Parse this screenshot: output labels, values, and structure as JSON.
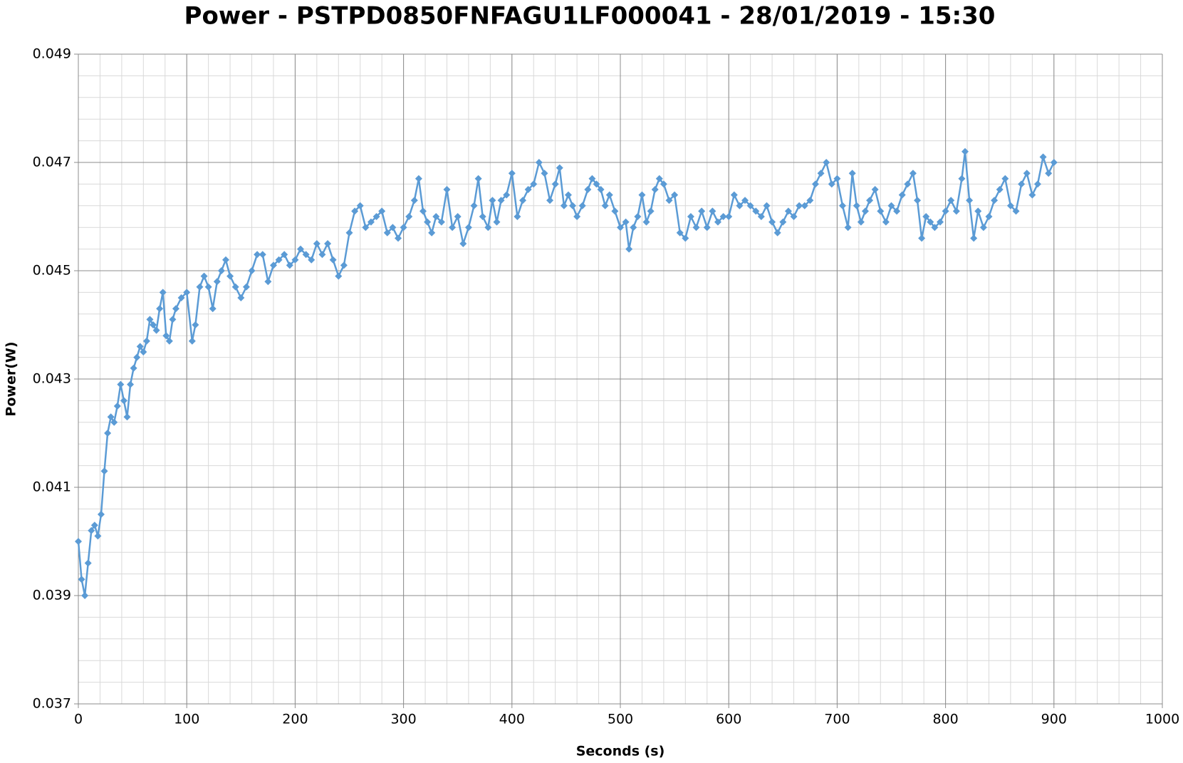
{
  "chart_data": {
    "type": "line",
    "title": "Power - PSTPD0850FNFAGU1LF000041 - 28/01/2019 - 15:30",
    "x_label": "Seconds (s)",
    "y_label": "Power(W)",
    "color": "#5b9bd5",
    "marker": "diamond",
    "grid": true,
    "minor_grid": {
      "x": 20,
      "y": 0.0004
    },
    "xlim": [
      0,
      1000
    ],
    "xticks": [
      0,
      100,
      200,
      300,
      400,
      500,
      600,
      700,
      800,
      900,
      1000
    ],
    "ylim": [
      0.037,
      0.049
    ],
    "yticks": [
      0.037,
      0.039,
      0.041,
      0.043,
      0.045,
      0.047,
      0.049
    ],
    "x": [
      0,
      3,
      6,
      9,
      12,
      15,
      18,
      21,
      24,
      27,
      30,
      33,
      36,
      39,
      42,
      45,
      48,
      51,
      54,
      57,
      60,
      63,
      66,
      69,
      72,
      75,
      78,
      81,
      84,
      87,
      90,
      95,
      100,
      105,
      108,
      112,
      116,
      120,
      124,
      128,
      132,
      136,
      140,
      145,
      150,
      155,
      160,
      165,
      170,
      175,
      180,
      185,
      190,
      195,
      200,
      205,
      210,
      215,
      220,
      225,
      230,
      235,
      240,
      245,
      250,
      255,
      260,
      265,
      270,
      275,
      280,
      285,
      290,
      295,
      300,
      305,
      310,
      314,
      318,
      322,
      326,
      330,
      335,
      340,
      345,
      350,
      355,
      360,
      365,
      369,
      373,
      378,
      382,
      386,
      390,
      395,
      400,
      405,
      410,
      415,
      420,
      425,
      430,
      435,
      440,
      444,
      448,
      452,
      456,
      460,
      465,
      470,
      474,
      478,
      482,
      486,
      490,
      495,
      500,
      505,
      508,
      512,
      516,
      520,
      524,
      528,
      532,
      536,
      540,
      545,
      550,
      555,
      560,
      565,
      570,
      575,
      580,
      585,
      590,
      595,
      600,
      605,
      610,
      615,
      620,
      625,
      630,
      635,
      640,
      645,
      650,
      655,
      660,
      665,
      670,
      675,
      680,
      685,
      690,
      695,
      700,
      705,
      710,
      714,
      718,
      722,
      726,
      730,
      735,
      740,
      745,
      750,
      755,
      760,
      765,
      770,
      774,
      778,
      782,
      786,
      790,
      795,
      800,
      805,
      810,
      815,
      818,
      822,
      826,
      830,
      835,
      840,
      845,
      850,
      855,
      860,
      865,
      870,
      875,
      880,
      885,
      890,
      895,
      900
    ],
    "values": [
      0.04,
      0.0393,
      0.039,
      0.0396,
      0.0402,
      0.0403,
      0.0401,
      0.0405,
      0.0413,
      0.042,
      0.0423,
      0.0422,
      0.0425,
      0.0429,
      0.0426,
      0.0423,
      0.0429,
      0.0432,
      0.0434,
      0.0436,
      0.0435,
      0.0437,
      0.0441,
      0.044,
      0.0439,
      0.0443,
      0.0446,
      0.0438,
      0.0437,
      0.0441,
      0.0443,
      0.0445,
      0.0446,
      0.0437,
      0.044,
      0.0447,
      0.0449,
      0.0447,
      0.0443,
      0.0448,
      0.045,
      0.0452,
      0.0449,
      0.0447,
      0.0445,
      0.0447,
      0.045,
      0.0453,
      0.0453,
      0.0448,
      0.0451,
      0.0452,
      0.0453,
      0.0451,
      0.0452,
      0.0454,
      0.0453,
      0.0452,
      0.0455,
      0.0453,
      0.0455,
      0.0452,
      0.0449,
      0.0451,
      0.0457,
      0.0461,
      0.0462,
      0.0458,
      0.0459,
      0.046,
      0.0461,
      0.0457,
      0.0458,
      0.0456,
      0.0458,
      0.046,
      0.0463,
      0.0467,
      0.0461,
      0.0459,
      0.0457,
      0.046,
      0.0459,
      0.0465,
      0.0458,
      0.046,
      0.0455,
      0.0458,
      0.0462,
      0.0467,
      0.046,
      0.0458,
      0.0463,
      0.0459,
      0.0463,
      0.0464,
      0.0468,
      0.046,
      0.0463,
      0.0465,
      0.0466,
      0.047,
      0.0468,
      0.0463,
      0.0466,
      0.0469,
      0.0462,
      0.0464,
      0.0462,
      0.046,
      0.0462,
      0.0465,
      0.0467,
      0.0466,
      0.0465,
      0.0462,
      0.0464,
      0.0461,
      0.0458,
      0.0459,
      0.0454,
      0.0458,
      0.046,
      0.0464,
      0.0459,
      0.0461,
      0.0465,
      0.0467,
      0.0466,
      0.0463,
      0.0464,
      0.0457,
      0.0456,
      0.046,
      0.0458,
      0.0461,
      0.0458,
      0.0461,
      0.0459,
      0.046,
      0.046,
      0.0464,
      0.0462,
      0.0463,
      0.0462,
      0.0461,
      0.046,
      0.0462,
      0.0459,
      0.0457,
      0.0459,
      0.0461,
      0.046,
      0.0462,
      0.0462,
      0.0463,
      0.0466,
      0.0468,
      0.047,
      0.0466,
      0.0467,
      0.0462,
      0.0458,
      0.0468,
      0.0462,
      0.0459,
      0.0461,
      0.0463,
      0.0465,
      0.0461,
      0.0459,
      0.0462,
      0.0461,
      0.0464,
      0.0466,
      0.0468,
      0.0463,
      0.0456,
      0.046,
      0.0459,
      0.0458,
      0.0459,
      0.0461,
      0.0463,
      0.0461,
      0.0467,
      0.0472,
      0.0463,
      0.0456,
      0.0461,
      0.0458,
      0.046,
      0.0463,
      0.0465,
      0.0467,
      0.0462,
      0.0461,
      0.0466,
      0.0468,
      0.0464,
      0.0466,
      0.0471,
      0.0468,
      0.047
    ]
  }
}
